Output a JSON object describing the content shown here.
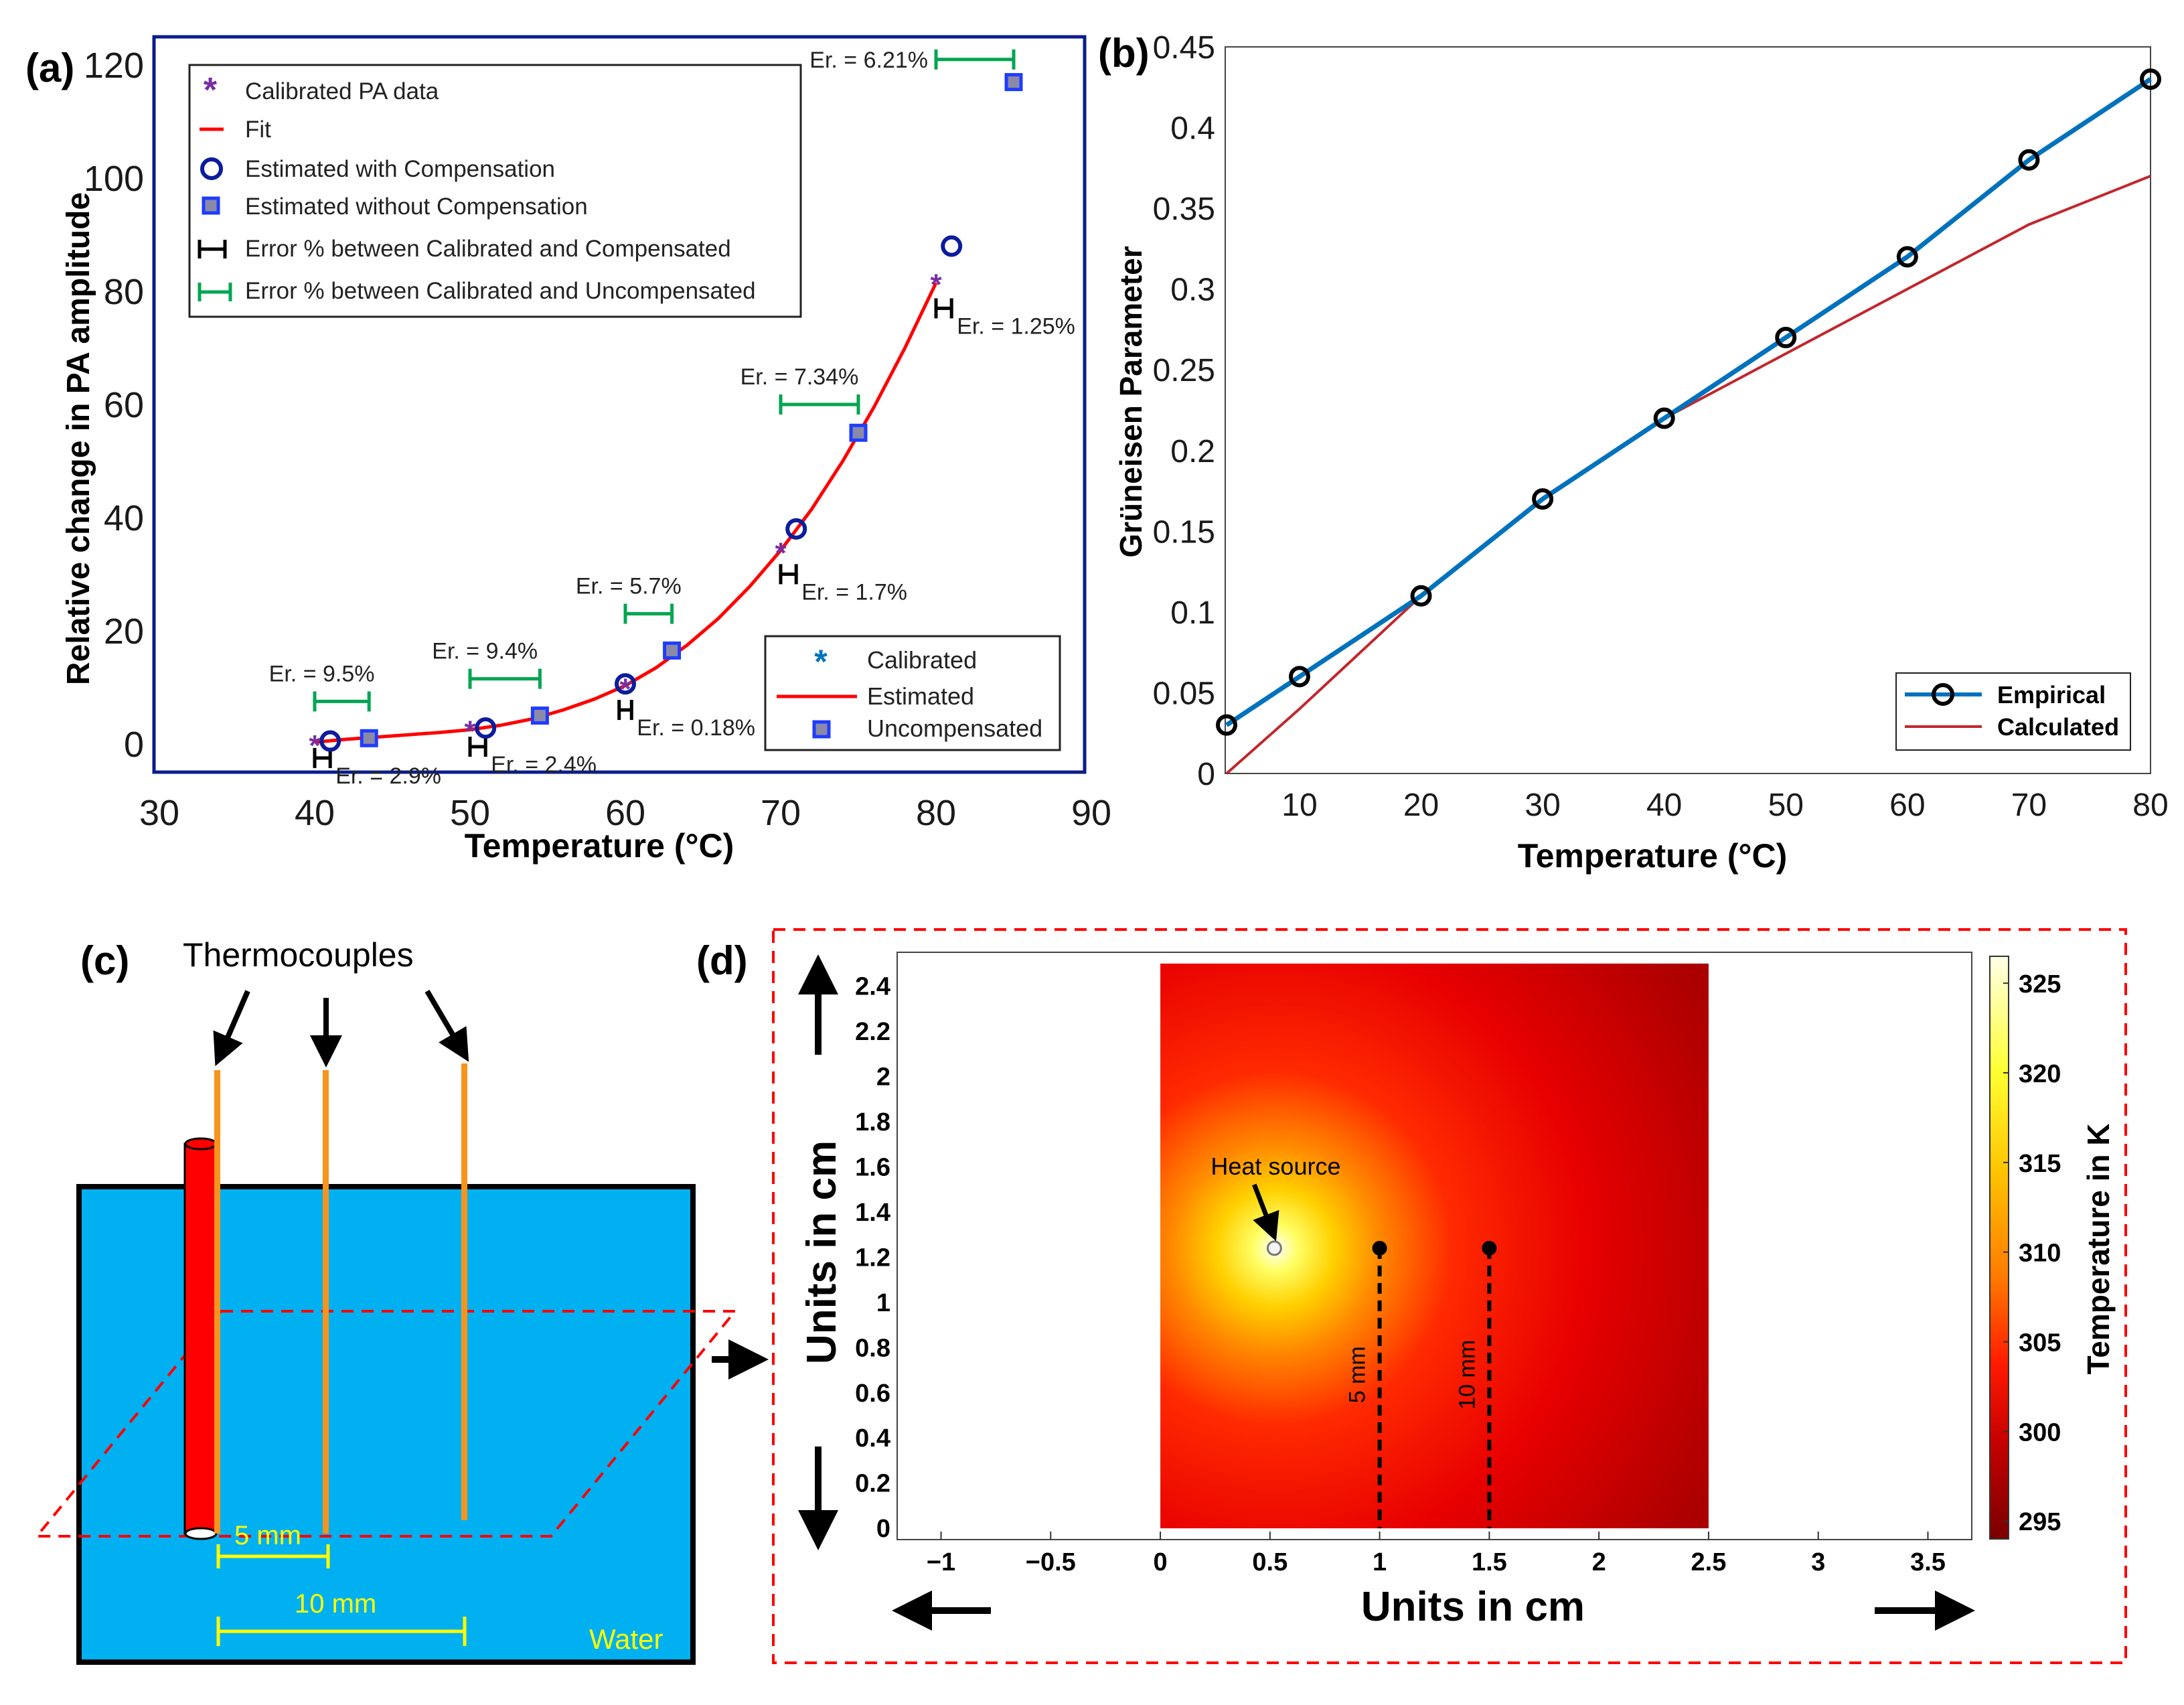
{
  "panels": {
    "a": {
      "label": "(a)"
    },
    "b": {
      "label": "(b)"
    },
    "c": {
      "label": "(c)"
    },
    "d": {
      "label": "(d)"
    }
  },
  "colors": {
    "calibrated_star": "#7a2ea0",
    "fit": "#ff0000",
    "compensated_circle": "#0b1c9c",
    "uncompensated_square": "#1f3cff",
    "error_comp": "#000000",
    "error_uncomp": "#00a651",
    "empirical": "#0072bd",
    "calculated": "#c1272d",
    "water": "#00b0f0",
    "rod": "#ff0000",
    "thermocouple": "#f7941d",
    "dimension": "#ffff00",
    "dashed_box": "#ff0000"
  },
  "chart_data": [
    {
      "panel": "a",
      "type": "scatter",
      "xlabel": "Temperature (°C)",
      "ylabel": "Relative change in PA amplitude",
      "xlim": [
        30,
        90
      ],
      "ylim": [
        -5,
        125
      ],
      "xticks": [
        30,
        40,
        50,
        60,
        70,
        80,
        90
      ],
      "yticks": [
        0,
        20,
        40,
        60,
        80,
        100,
        120
      ],
      "legend_main": [
        "Calibrated PA data",
        "Fit",
        "Estimated with Compensation",
        "Estimated without Compensation",
        "Error % between Calibrated and Compensated",
        "Error % between Calibrated and Uncompensated"
      ],
      "legend_small": [
        "Calibrated",
        "Estimated",
        "Uncompensated"
      ],
      "series": [
        {
          "name": "Calibrated PA data",
          "x": [
            40,
            50,
            60,
            70,
            80
          ],
          "y": [
            0,
            2.5,
            10,
            34,
            81.5
          ]
        },
        {
          "name": "Estimated with Compensation",
          "x": [
            41,
            51,
            60,
            71,
            81
          ],
          "y": [
            0.5,
            2.8,
            10.6,
            38,
            88
          ]
        },
        {
          "name": "Estimated without Compensation",
          "x": [
            43.5,
            54.5,
            63,
            75,
            85
          ],
          "y": [
            1,
            5,
            16.5,
            55,
            117
          ]
        },
        {
          "name": "Fit",
          "x": [
            40,
            42,
            44,
            46,
            48,
            50,
            52,
            54,
            56,
            58,
            60,
            62,
            64,
            66,
            68,
            70,
            72,
            74,
            76,
            78,
            80
          ],
          "y": [
            0.3,
            0.8,
            1.2,
            1.6,
            2.0,
            2.5,
            3.3,
            4.4,
            6.0,
            7.9,
            10.3,
            13.5,
            17.5,
            22.2,
            27.8,
            34.2,
            41.5,
            50.0,
            59.5,
            70.0,
            81.5
          ]
        }
      ],
      "error_comp": [
        {
          "x1": 40,
          "x2": 41,
          "y": -2.5,
          "label": "Er. = 2.9%"
        },
        {
          "x1": 50,
          "x2": 51,
          "y": -0.5,
          "label": "Er. = 2.4%"
        },
        {
          "x1": 59.6,
          "x2": 60.4,
          "y": 6,
          "label": "Er. = 0.18%"
        },
        {
          "x1": 70,
          "x2": 71,
          "y": 30,
          "label": "Er. = 1.7%"
        },
        {
          "x1": 80,
          "x2": 81,
          "y": 77,
          "label": "Er. = 1.25%"
        }
      ],
      "error_uncomp": [
        {
          "x1": 40,
          "x2": 43.5,
          "y": 7.5,
          "label": "Er. = 9.5%"
        },
        {
          "x1": 50,
          "x2": 54.5,
          "y": 11.5,
          "label": "Er. = 9.4%"
        },
        {
          "x1": 60,
          "x2": 63,
          "y": 23,
          "label": "Er. = 5.7%"
        },
        {
          "x1": 70,
          "x2": 75,
          "y": 60,
          "label": "Er. = 7.34%"
        },
        {
          "x1": 80,
          "x2": 85,
          "y": 121,
          "label": "Er. = 6.21%"
        }
      ]
    },
    {
      "panel": "b",
      "type": "line",
      "xlabel": "Temperature (°C)",
      "ylabel": "Grüneisen Parameter",
      "xlim": [
        4,
        80
      ],
      "ylim": [
        0,
        0.45
      ],
      "xticks": [
        10,
        20,
        30,
        40,
        50,
        60,
        70,
        80
      ],
      "yticks": [
        "0",
        "0.05",
        "0.1",
        "0.15",
        "0.2",
        "0.25",
        "0.3",
        "0.35",
        "0.4",
        "0.45"
      ],
      "series": [
        {
          "name": "Empirical",
          "x": [
            4,
            10,
            20,
            30,
            40,
            50,
            60,
            70,
            80
          ],
          "y": [
            0.03,
            0.06,
            0.11,
            0.17,
            0.22,
            0.27,
            0.32,
            0.38,
            0.43
          ]
        },
        {
          "name": "Calculated",
          "x": [
            4,
            10,
            20,
            30,
            40,
            50,
            60,
            70,
            80
          ],
          "y": [
            0.0,
            0.04,
            0.11,
            0.17,
            0.22,
            0.26,
            0.3,
            0.34,
            0.37
          ]
        }
      ]
    },
    {
      "panel": "d",
      "type": "heatmap",
      "xlabel": "Units in cm",
      "ylabel": "Units in cm",
      "colorbar_label": "Temperature in K",
      "xlim": [
        -1.2,
        3.7
      ],
      "ylim": [
        -0.05,
        2.55
      ],
      "xticks": [
        "−1",
        "−0.5",
        "0",
        "0.5",
        "1",
        "1.5",
        "2",
        "2.5",
        "3",
        "3.5"
      ],
      "yticks": [
        "0",
        "0.2",
        "0.4",
        "0.6",
        "0.8",
        "1",
        "1.2",
        "1.4",
        "1.6",
        "1.8",
        "2",
        "2.2",
        "2.4"
      ],
      "colorbar_ticks": [
        "295",
        "300",
        "305",
        "310",
        "315",
        "320",
        "325"
      ],
      "colorbar_range": [
        294,
        326.5
      ],
      "domain_x": [
        0,
        2.5
      ],
      "domain_y": [
        0,
        2.5
      ],
      "heat_source": {
        "x": 0.52,
        "y": 1.24,
        "label": "Heat source"
      },
      "probes": [
        {
          "x": 1.0,
          "y": 1.24,
          "label": "5 mm"
        },
        {
          "x": 1.5,
          "y": 1.24,
          "label": "10 mm"
        }
      ]
    }
  ],
  "diagram_c": {
    "title": "Thermocouples",
    "dim_5": "5 mm",
    "dim_10": "10 mm",
    "water": "Water"
  }
}
